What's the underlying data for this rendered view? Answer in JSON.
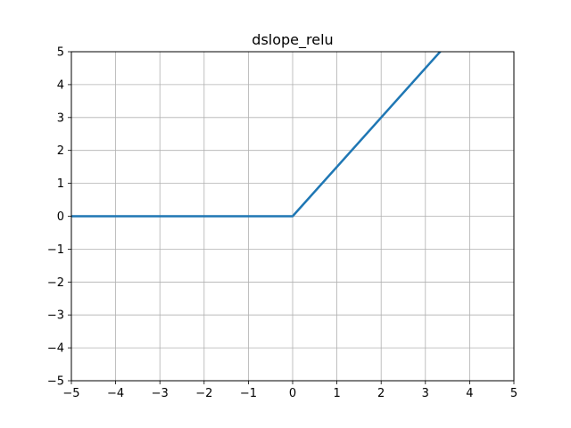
{
  "chart_data": {
    "type": "line",
    "title": "dslope_relu",
    "xlabel": "",
    "ylabel": "",
    "xlim": [
      -5,
      5
    ],
    "ylim": [
      -5,
      5
    ],
    "xticks": [
      -5,
      -4,
      -3,
      -2,
      -1,
      0,
      1,
      2,
      3,
      4,
      5
    ],
    "yticks": [
      -5,
      -4,
      -3,
      -2,
      -1,
      0,
      1,
      2,
      3,
      4,
      5
    ],
    "xtick_labels": [
      "−5",
      "−4",
      "−3",
      "−2",
      "−1",
      "0",
      "1",
      "2",
      "3",
      "4",
      "5"
    ],
    "ytick_labels": [
      "−5",
      "−4",
      "−3",
      "−2",
      "−1",
      "0",
      "1",
      "2",
      "3",
      "4",
      "5"
    ],
    "grid": true,
    "series": [
      {
        "x": [
          -5,
          0,
          5
        ],
        "y": [
          0,
          0,
          7.5
        ],
        "color": "#1f77b4"
      }
    ]
  }
}
